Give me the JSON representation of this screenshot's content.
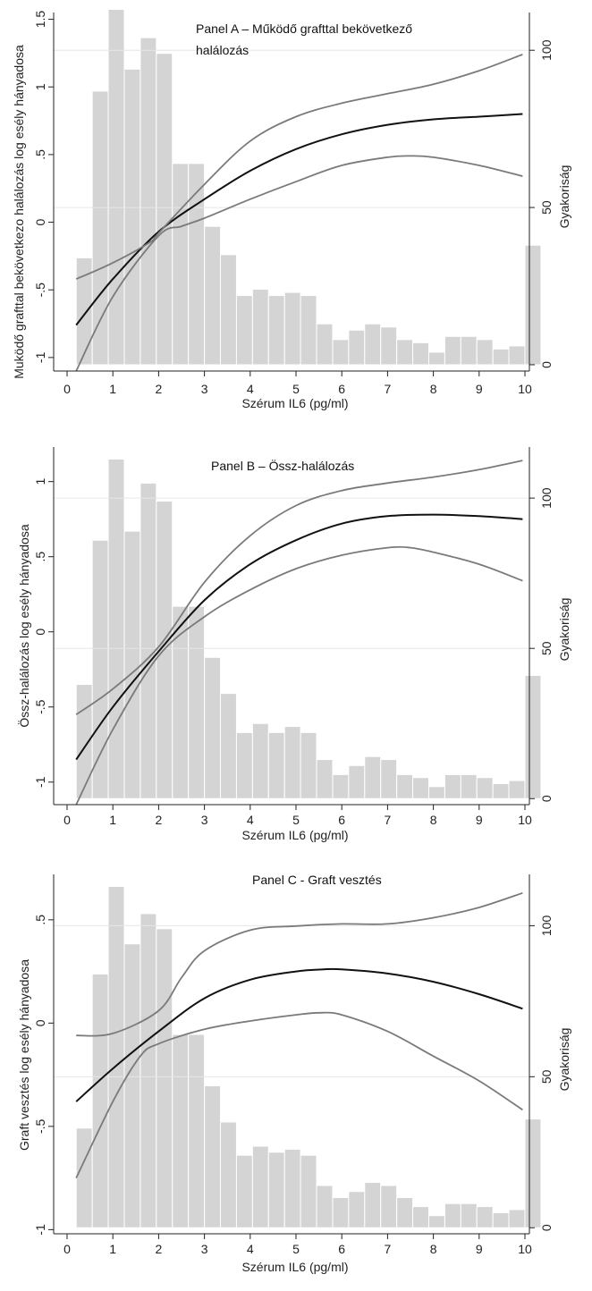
{
  "chart_data": [
    {
      "type": "line",
      "panel_id": "A",
      "title_lines": [
        "Panel A – Működő grafttal bekövetkező",
        "halálozás"
      ],
      "xlabel": "Szérum IL6 (pg/ml)",
      "ylabel": "Muködő grafttal bekövetkezo halálozás log esély hányadosa",
      "ylabel_right": "Gyakoriság",
      "xlim": [
        0,
        10
      ],
      "ylim": [
        -1.1,
        1.55
      ],
      "y2lim": [
        -2,
        112
      ],
      "xticks": [
        "0",
        "1",
        "2",
        "3",
        "4",
        "5",
        "6",
        "7",
        "8",
        "9",
        "10"
      ],
      "yticks": [
        {
          "v": -1,
          "label": "-1"
        },
        {
          "v": -0.5,
          "label": "-.5"
        },
        {
          "v": 0,
          "label": "0"
        },
        {
          "v": 0.5,
          "label": ".5"
        },
        {
          "v": 1,
          "label": "1"
        },
        {
          "v": 1.5,
          "label": "1.5"
        }
      ],
      "y2ticks": [
        {
          "v": 0,
          "label": "0"
        },
        {
          "v": 50,
          "label": "50"
        },
        {
          "v": 100,
          "label": "100"
        }
      ],
      "hist": {
        "start": 0.2,
        "width": 0.35,
        "counts": [
          34,
          87,
          113,
          94,
          104,
          99,
          64,
          64,
          44,
          35,
          22,
          24,
          22,
          23,
          22,
          13,
          8,
          11,
          13,
          12,
          8,
          7,
          4,
          9,
          9,
          8,
          5,
          6,
          38
        ]
      },
      "series": [
        {
          "name": "estimate",
          "x": [
            0.2,
            1,
            2,
            3,
            4,
            5,
            6,
            7,
            8,
            9,
            9.95
          ],
          "y": [
            -0.76,
            -0.42,
            -0.07,
            0.17,
            0.38,
            0.54,
            0.65,
            0.72,
            0.76,
            0.78,
            0.8
          ]
        },
        {
          "name": "upper",
          "x": [
            0.2,
            1,
            1.8,
            2,
            3,
            4,
            5,
            6,
            7,
            8,
            9,
            9.95
          ],
          "y": [
            -0.42,
            -0.3,
            -0.15,
            -0.08,
            0.28,
            0.6,
            0.78,
            0.88,
            0.95,
            1.02,
            1.12,
            1.24
          ]
        },
        {
          "name": "lower",
          "x": [
            0.2,
            1,
            2,
            2.5,
            3,
            4,
            5,
            6,
            7,
            7.5,
            8,
            9,
            9.95
          ],
          "y": [
            -1.1,
            -0.55,
            -0.1,
            -0.03,
            0.03,
            0.17,
            0.3,
            0.42,
            0.48,
            0.49,
            0.48,
            0.42,
            0.34
          ]
        }
      ]
    },
    {
      "type": "line",
      "panel_id": "B",
      "title_lines": [
        "Panel B – Össz-halálozás"
      ],
      "xlabel": "Szérum IL6 (pg/ml)",
      "ylabel": "Össz-halálozás log esély hányadosa",
      "ylabel_right": "Gyakoriság",
      "xlim": [
        0,
        10
      ],
      "ylim": [
        -1.15,
        1.23
      ],
      "y2lim": [
        -2,
        117
      ],
      "xticks": [
        "0",
        "1",
        "2",
        "3",
        "4",
        "5",
        "6",
        "7",
        "8",
        "9",
        "10"
      ],
      "yticks": [
        {
          "v": -1,
          "label": "-1"
        },
        {
          "v": -0.5,
          "label": "-.5"
        },
        {
          "v": 0,
          "label": "0"
        },
        {
          "v": 0.5,
          "label": ".5"
        },
        {
          "v": 1,
          "label": "1"
        }
      ],
      "y2ticks": [
        {
          "v": 0,
          "label": "0"
        },
        {
          "v": 50,
          "label": "50"
        },
        {
          "v": 100,
          "label": "100"
        }
      ],
      "hist": {
        "start": 0.2,
        "width": 0.35,
        "counts": [
          38,
          86,
          113,
          89,
          105,
          99,
          64,
          64,
          47,
          35,
          22,
          25,
          22,
          24,
          22,
          13,
          8,
          11,
          14,
          13,
          8,
          7,
          4,
          8,
          8,
          7,
          5,
          6,
          41
        ]
      },
      "series": [
        {
          "name": "estimate",
          "x": [
            0.2,
            1,
            2,
            3,
            4,
            5,
            6,
            7,
            8,
            9,
            9.95
          ],
          "y": [
            -0.85,
            -0.5,
            -0.13,
            0.21,
            0.45,
            0.61,
            0.72,
            0.77,
            0.78,
            0.77,
            0.75
          ]
        },
        {
          "name": "upper",
          "x": [
            0.2,
            1,
            2,
            3,
            4,
            5,
            6,
            7,
            8,
            9,
            9.95
          ],
          "y": [
            -0.55,
            -0.38,
            -0.1,
            0.33,
            0.64,
            0.84,
            0.94,
            0.99,
            1.03,
            1.08,
            1.14
          ]
        },
        {
          "name": "lower",
          "x": [
            0.2,
            1,
            2,
            3,
            4,
            5,
            6,
            7,
            7.5,
            8,
            9,
            9.95
          ],
          "y": [
            -1.15,
            -0.65,
            -0.16,
            0.1,
            0.28,
            0.42,
            0.51,
            0.56,
            0.56,
            0.53,
            0.45,
            0.34
          ]
        }
      ]
    },
    {
      "type": "line",
      "panel_id": "C",
      "title_lines": [
        "Panel C - Graft vesztés"
      ],
      "xlabel": "Szérum IL6 (pg/ml)",
      "ylabel": "Graft vesztés log esély hányadosa",
      "ylabel_right": "Gyakoriság",
      "xlim": [
        0,
        10
      ],
      "ylim": [
        -1.02,
        0.72
      ],
      "y2lim": [
        -2,
        117
      ],
      "xticks": [
        "0",
        "1",
        "2",
        "3",
        "4",
        "5",
        "6",
        "7",
        "8",
        "9",
        "10"
      ],
      "yticks": [
        {
          "v": -1,
          "label": "-1"
        },
        {
          "v": -0.5,
          "label": "-.5"
        },
        {
          "v": 0,
          "label": "0"
        },
        {
          "v": 0.5,
          "label": ".5"
        }
      ],
      "y2ticks": [
        {
          "v": 0,
          "label": "0"
        },
        {
          "v": 50,
          "label": "50"
        },
        {
          "v": 100,
          "label": "100"
        }
      ],
      "hist": {
        "start": 0.2,
        "width": 0.35,
        "counts": [
          33,
          84,
          113,
          94,
          104,
          99,
          64,
          64,
          47,
          35,
          24,
          27,
          25,
          26,
          24,
          14,
          10,
          12,
          15,
          14,
          10,
          7,
          4,
          8,
          8,
          7,
          5,
          6,
          36
        ]
      },
      "series": [
        {
          "name": "estimate",
          "x": [
            0.2,
            1,
            2,
            3,
            4,
            5,
            5.6,
            6,
            7,
            8,
            9,
            9.95
          ],
          "y": [
            -0.38,
            -0.22,
            -0.04,
            0.12,
            0.21,
            0.25,
            0.26,
            0.26,
            0.24,
            0.2,
            0.14,
            0.07
          ]
        },
        {
          "name": "upper",
          "x": [
            0.2,
            1,
            2,
            2.5,
            3,
            4,
            5,
            6,
            7,
            8,
            9,
            9.95
          ],
          "y": [
            -0.06,
            -0.05,
            0.06,
            0.22,
            0.35,
            0.45,
            0.47,
            0.48,
            0.48,
            0.51,
            0.56,
            0.63
          ]
        },
        {
          "name": "lower",
          "x": [
            0.2,
            1,
            1.6,
            2,
            3,
            4,
            5,
            5.5,
            6,
            7,
            8,
            9,
            9.95
          ],
          "y": [
            -0.75,
            -0.38,
            -0.16,
            -0.1,
            -0.03,
            0.01,
            0.04,
            0.05,
            0.04,
            -0.04,
            -0.16,
            -0.28,
            -0.42
          ]
        }
      ]
    }
  ]
}
